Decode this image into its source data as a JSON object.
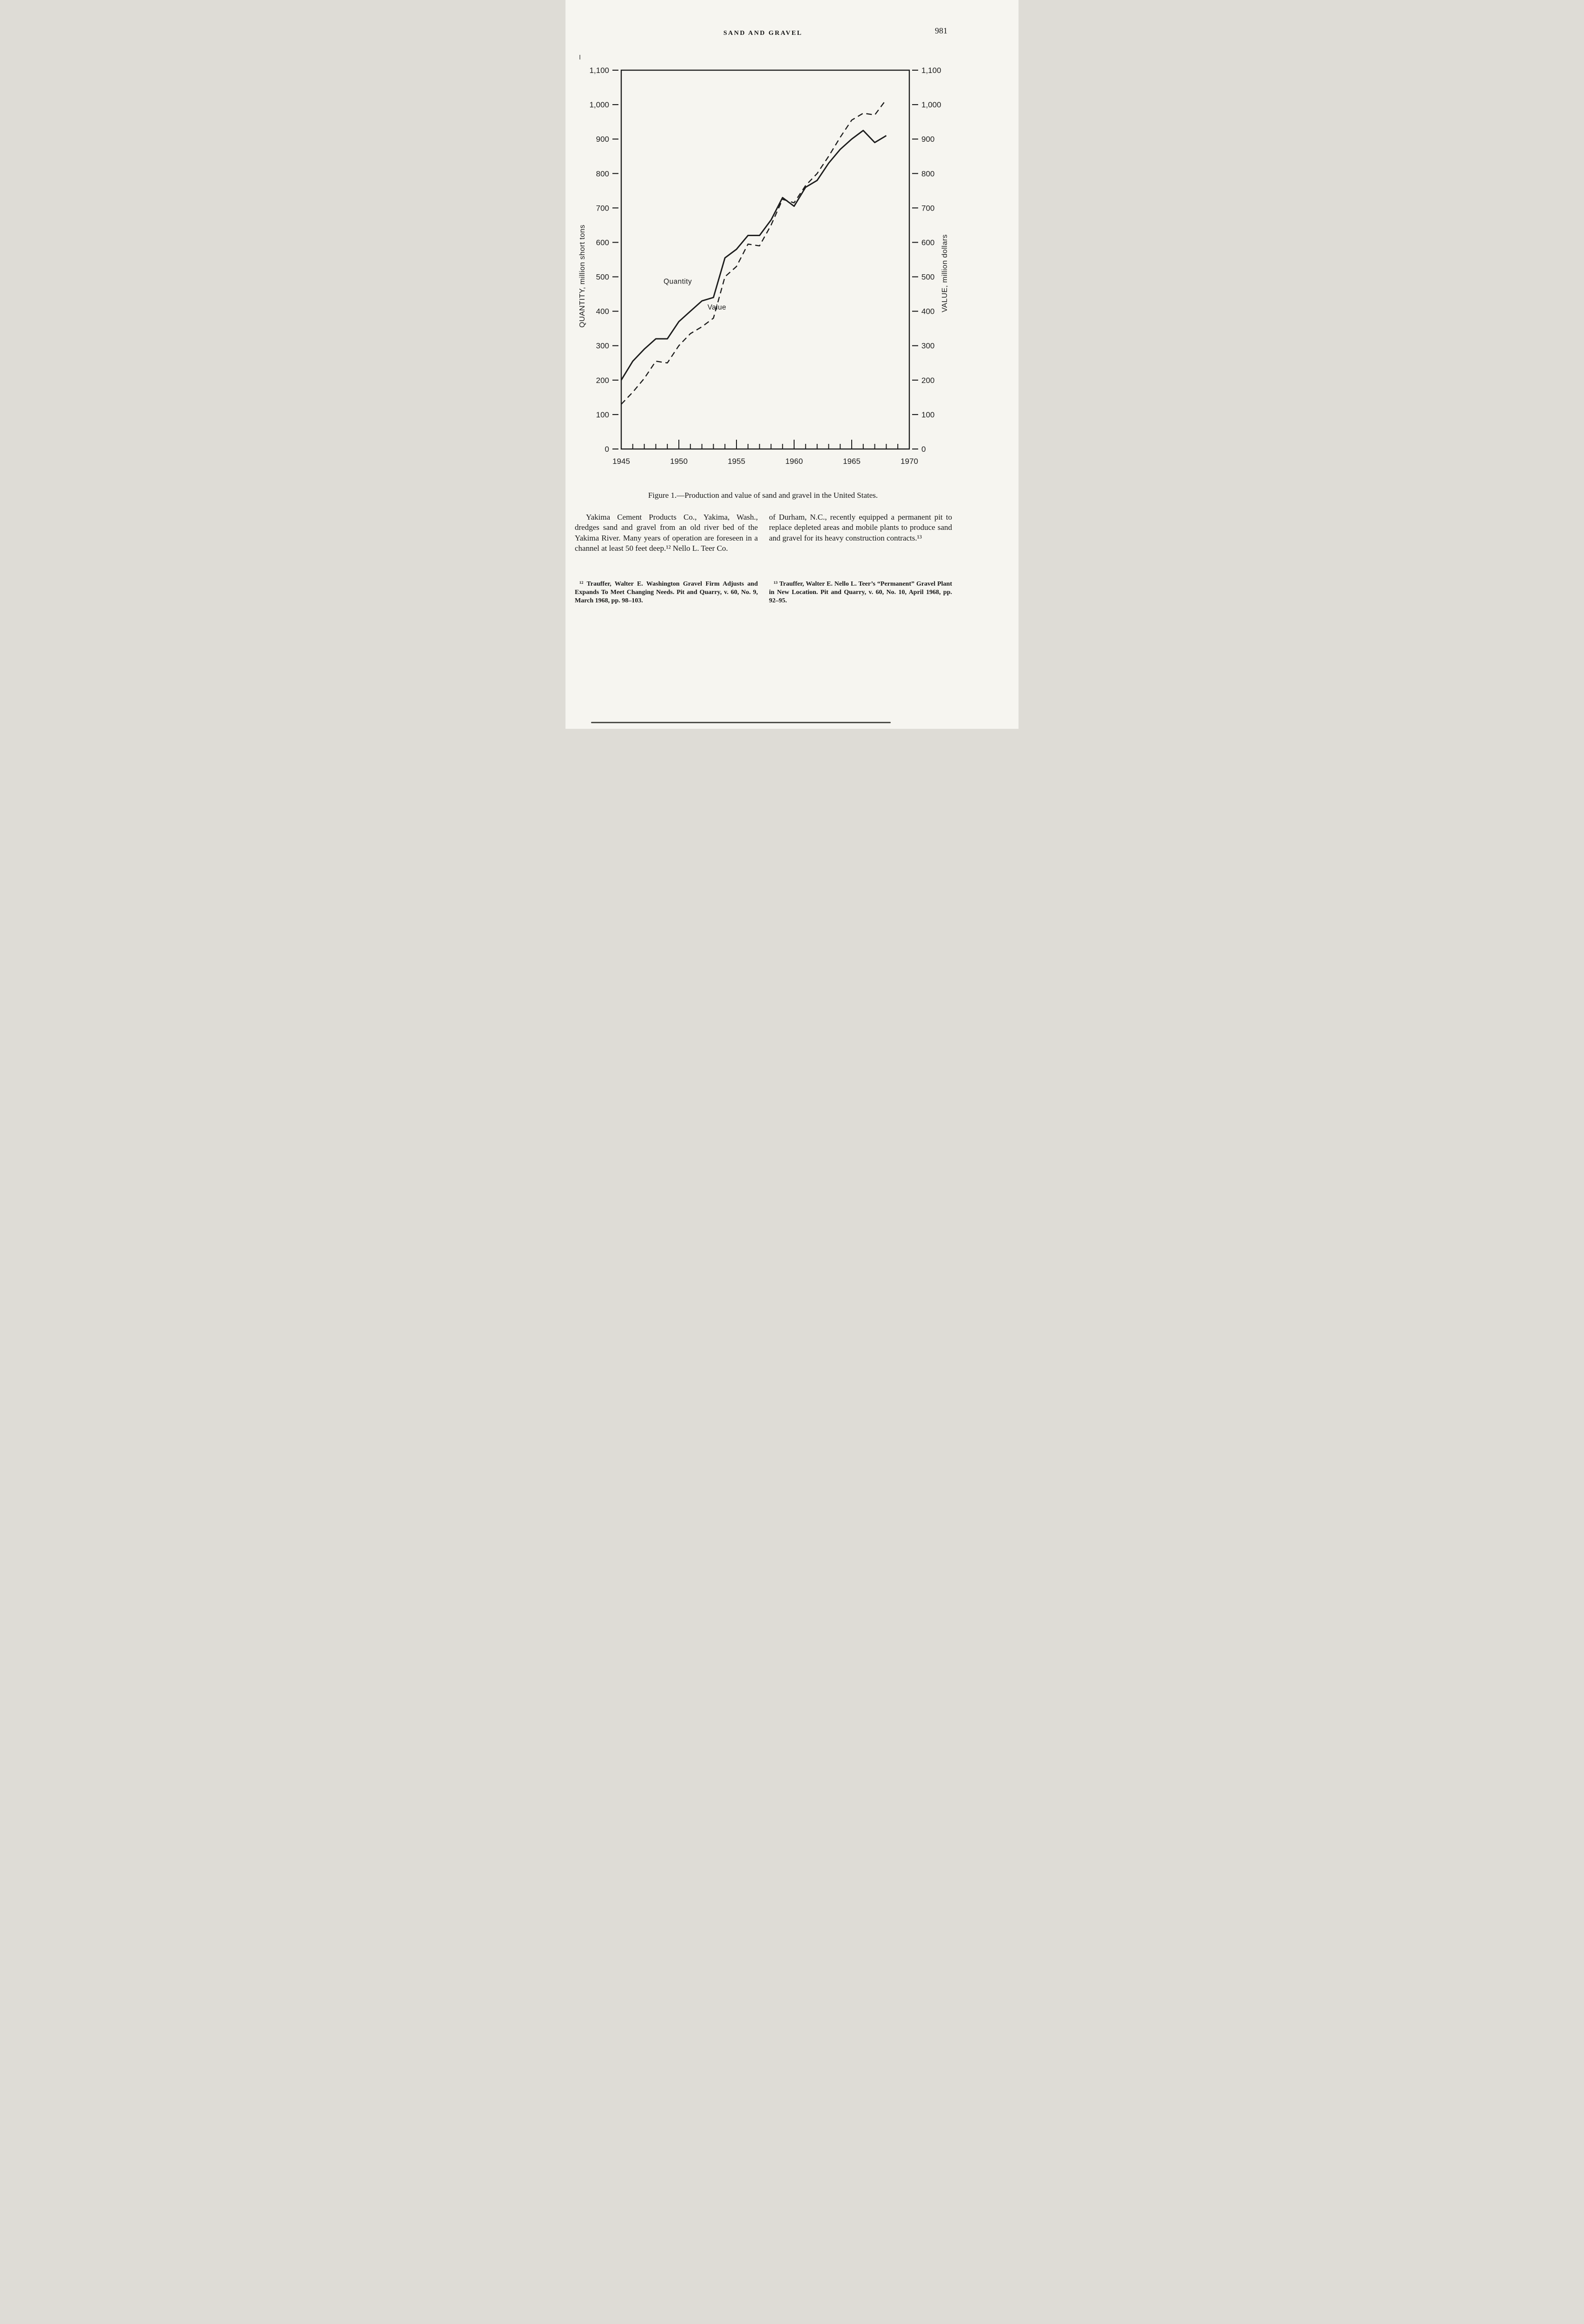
{
  "header": {
    "title": "SAND AND GRAVEL",
    "page_number": "981"
  },
  "figure": {
    "caption": "Figure 1.—Production and value of sand and gravel in the United States."
  },
  "chart_data": {
    "type": "line",
    "title": "Figure 1.—Production and value of sand and gravel in the United States.",
    "x": [
      1945,
      1946,
      1947,
      1948,
      1949,
      1950,
      1951,
      1952,
      1953,
      1954,
      1955,
      1956,
      1957,
      1958,
      1959,
      1960,
      1961,
      1962,
      1963,
      1964,
      1965,
      1966,
      1967,
      1968
    ],
    "series": [
      {
        "name": "Quantity",
        "axis": "left",
        "unit": "million short tons",
        "style": "solid",
        "values": [
          200,
          255,
          290,
          320,
          320,
          370,
          400,
          430,
          440,
          555,
          580,
          620,
          620,
          665,
          730,
          705,
          760,
          780,
          830,
          870,
          900,
          925,
          890,
          910
        ]
      },
      {
        "name": "Value",
        "axis": "right",
        "unit": "million dollars",
        "style": "dashed",
        "values": [
          130,
          165,
          205,
          255,
          250,
          300,
          335,
          355,
          380,
          500,
          530,
          595,
          590,
          650,
          725,
          715,
          765,
          800,
          850,
          905,
          955,
          975,
          970,
          1015
        ]
      }
    ],
    "xlabel": "",
    "ylabel_left": "QUANTITY, million short tons",
    "ylabel_right": "VALUE, million dollars",
    "xlim": [
      1945,
      1970
    ],
    "ylim": [
      0,
      1100
    ],
    "ytick_interval": 100,
    "ytick_labels": [
      "0",
      "100",
      "200",
      "300",
      "400",
      "500",
      "600",
      "700",
      "800",
      "900",
      "1,000",
      "1,100"
    ],
    "xtick_labels": [
      "1945",
      "1950",
      "1955",
      "1960",
      "1965",
      "1970"
    ],
    "grid": false,
    "legend_position": "inline-labels",
    "annotations": [
      {
        "text": "Quantity",
        "x": 1949.9,
        "y": 480
      },
      {
        "text": "Value",
        "x": 1953.3,
        "y": 405
      }
    ]
  },
  "body": {
    "left_column": "Yakima Cement Products Co., Yakima, Wash., dredges sand and gravel from an old river bed of the Yakima River. Many years of operation are foreseen in a channel at least 50 feet deep.¹² Nello L. Teer Co.",
    "right_column": "of Durham, N.C., recently equipped a permanent pit to replace depleted areas and mobile plants to produce sand and gravel for its heavy construction contracts.¹³"
  },
  "footnotes": {
    "left": "¹² Trauffer, Walter E. Washington Gravel Firm Adjusts and Expands To Meet Changing Needs. Pit and Quarry, v. 60, No. 9, March 1968, pp. 98–103.",
    "right": "¹³ Trauffer, Walter E. Nello L. Teer’s “Permanent” Gravel Plant in New Location. Pit and Quarry, v. 60, No. 10, April 1968, pp. 92–95."
  },
  "colors": {
    "ink": "#1c1c1c",
    "paper": "#f6f5f0"
  }
}
